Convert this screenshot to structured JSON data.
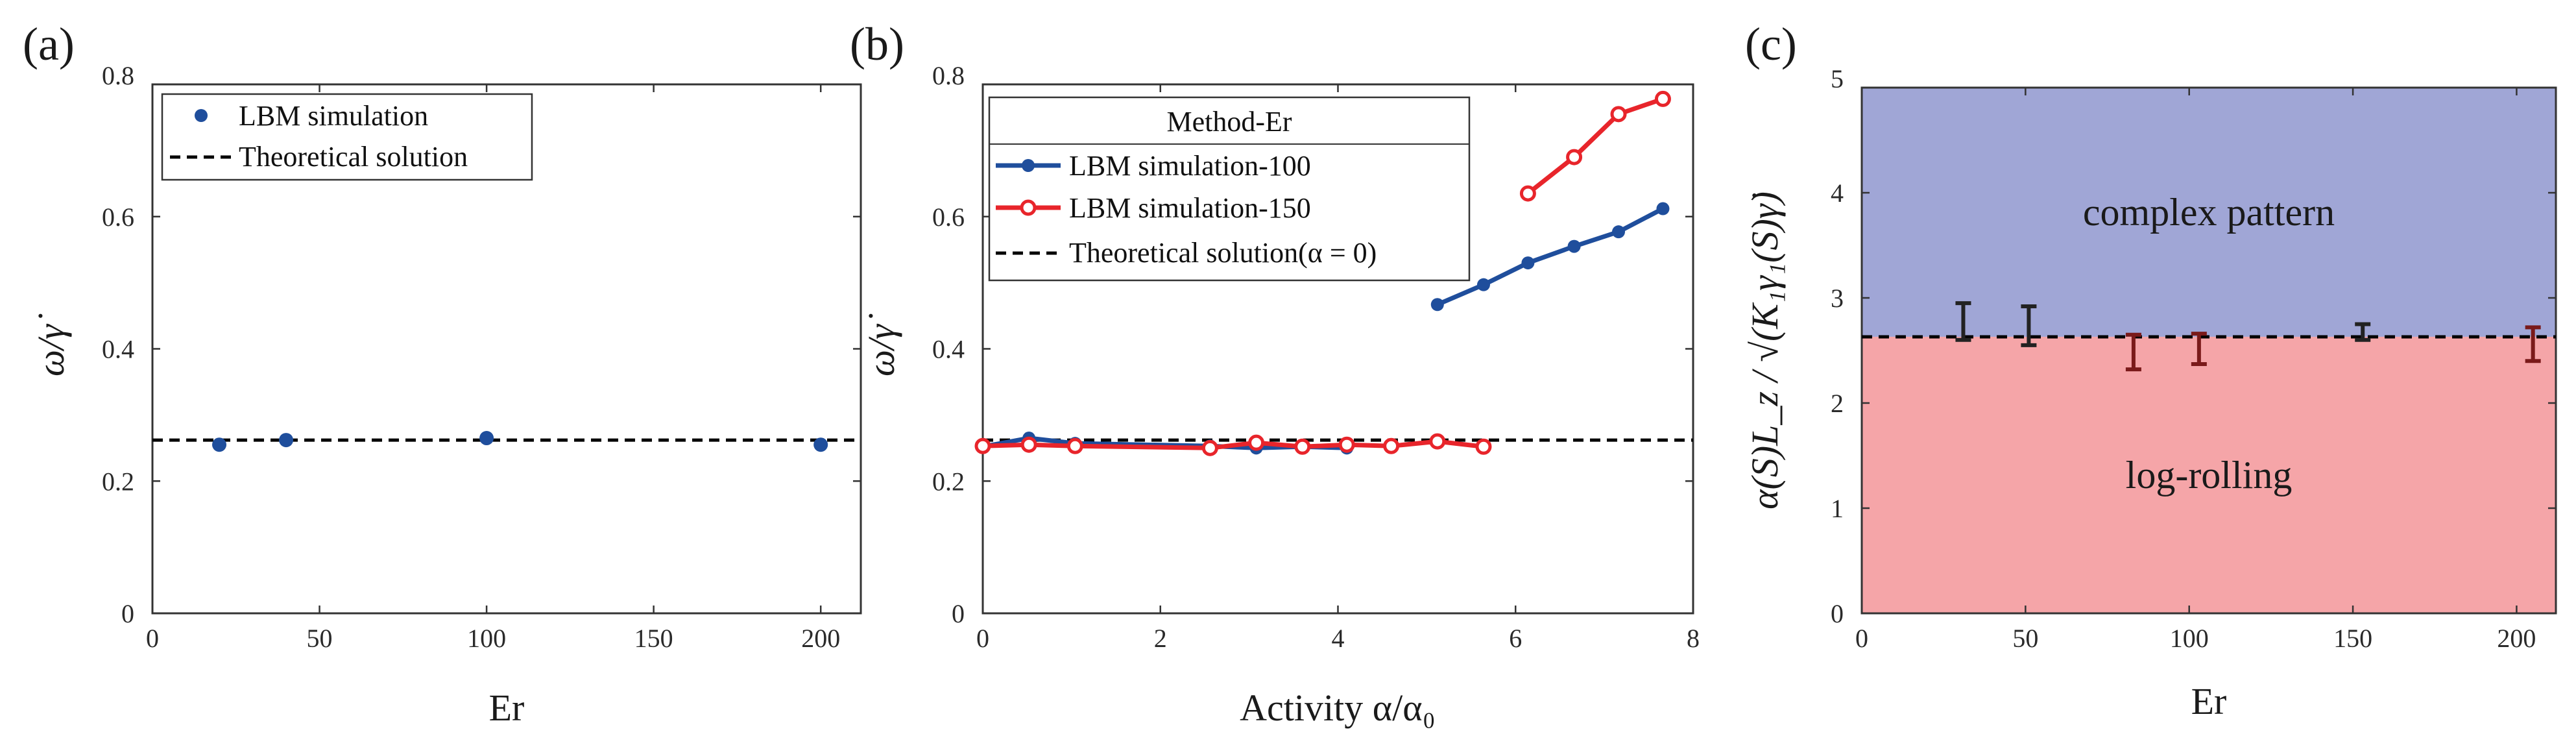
{
  "figure": {
    "panel_labels": [
      "(a)",
      "(b)",
      "(c)"
    ]
  },
  "chart_data": [
    {
      "panel": "(a)",
      "type": "scatter",
      "xlabel": "Er",
      "ylabel": "ω/γ̇",
      "xlim": [
        0,
        212
      ],
      "ylim": [
        0,
        0.8
      ],
      "xticks": [
        0,
        50,
        100,
        150,
        200
      ],
      "yticks": [
        0,
        0.2,
        0.4,
        0.6,
        0.8
      ],
      "legend_position": "top-left",
      "legend": [
        "LBM simulation",
        "Theoretical solution"
      ],
      "series": [
        {
          "name": "LBM simulation",
          "style": "markers",
          "color": "#1f4e9c",
          "x": [
            20,
            40,
            100,
            200
          ],
          "y": [
            0.255,
            0.262,
            0.265,
            0.255
          ]
        }
      ],
      "reference_lines": [
        {
          "name": "Theoretical solution",
          "y": 0.262,
          "style": "dashed",
          "color": "#000000"
        }
      ]
    },
    {
      "panel": "(b)",
      "type": "line",
      "xlabel": "Activity α/α₀",
      "ylabel": "ω/γ̇",
      "xlim": [
        0,
        8
      ],
      "ylim": [
        0,
        0.8
      ],
      "xticks": [
        0,
        2,
        4,
        6,
        8
      ],
      "yticks": [
        0,
        0.2,
        0.4,
        0.6,
        0.8
      ],
      "legend_position": "top-left",
      "legend_title": "Method-Er",
      "legend": [
        "LBM simulation-100",
        "LBM simulation-150",
        "Theoretical solution(α = 0)"
      ],
      "series": [
        {
          "name": "LBM simulation-100",
          "color": "#1f4e9c",
          "marker": "filled-circle",
          "segments": [
            {
              "x": [
                0,
                0.52,
                1.04,
                2.56,
                3.08,
                3.6,
                4.1
              ],
              "y": [
                0.252,
                0.265,
                0.257,
                0.253,
                0.25,
                0.252,
                0.25
              ]
            },
            {
              "x": [
                5.12,
                5.64,
                6.14,
                6.66,
                7.16,
                7.66
              ],
              "y": [
                0.467,
                0.497,
                0.53,
                0.555,
                0.577,
                0.612
              ]
            }
          ]
        },
        {
          "name": "LBM simulation-150",
          "color": "#e8252b",
          "marker": "open-circle",
          "segments": [
            {
              "x": [
                0,
                0.52,
                1.04,
                2.56,
                3.08,
                3.6,
                4.1,
                4.6,
                5.12,
                5.64
              ],
              "y": [
                0.253,
                0.255,
                0.253,
                0.25,
                0.258,
                0.252,
                0.255,
                0.253,
                0.26,
                0.252
              ]
            },
            {
              "x": [
                6.14,
                6.66,
                7.16,
                7.66
              ],
              "y": [
                0.635,
                0.69,
                0.755,
                0.778
              ]
            }
          ]
        }
      ],
      "reference_lines": [
        {
          "name": "Theoretical solution(α = 0)",
          "y": 0.262,
          "style": "dashed",
          "color": "#000000"
        }
      ]
    },
    {
      "panel": "(c)",
      "type": "scatter",
      "subtype": "error-bar regime map",
      "xlabel": "Er",
      "ylabel": "α(S)L_z / √(K₁γ₁(S)γ̇)",
      "xlim": [
        0,
        212
      ],
      "ylim": [
        0,
        5
      ],
      "xticks": [
        0,
        50,
        100,
        150,
        200
      ],
      "yticks": [
        0,
        1,
        2,
        3,
        4,
        5
      ],
      "boundary": 2.63,
      "regions": [
        {
          "name": "complex pattern",
          "from": 2.63,
          "to": 5,
          "color": "#a0a6d6"
        },
        {
          "name": "log-rolling",
          "from": 0,
          "to": 2.63,
          "color": "#f5a5a8"
        }
      ],
      "errorbars": [
        {
          "x": 31,
          "low": 2.6,
          "high": 2.95,
          "color": "#222222"
        },
        {
          "x": 51,
          "low": 2.55,
          "high": 2.92,
          "color": "#222222"
        },
        {
          "x": 83,
          "low": 2.32,
          "high": 2.65,
          "color": "#7a1a1a"
        },
        {
          "x": 103,
          "low": 2.37,
          "high": 2.66,
          "color": "#7a1a1a"
        },
        {
          "x": 153,
          "low": 2.6,
          "high": 2.75,
          "color": "#222222"
        },
        {
          "x": 205,
          "low": 2.4,
          "high": 2.72,
          "color": "#7a1a1a"
        }
      ],
      "reference_lines": [
        {
          "y": 2.63,
          "style": "dashed",
          "color": "#000000"
        }
      ]
    }
  ]
}
